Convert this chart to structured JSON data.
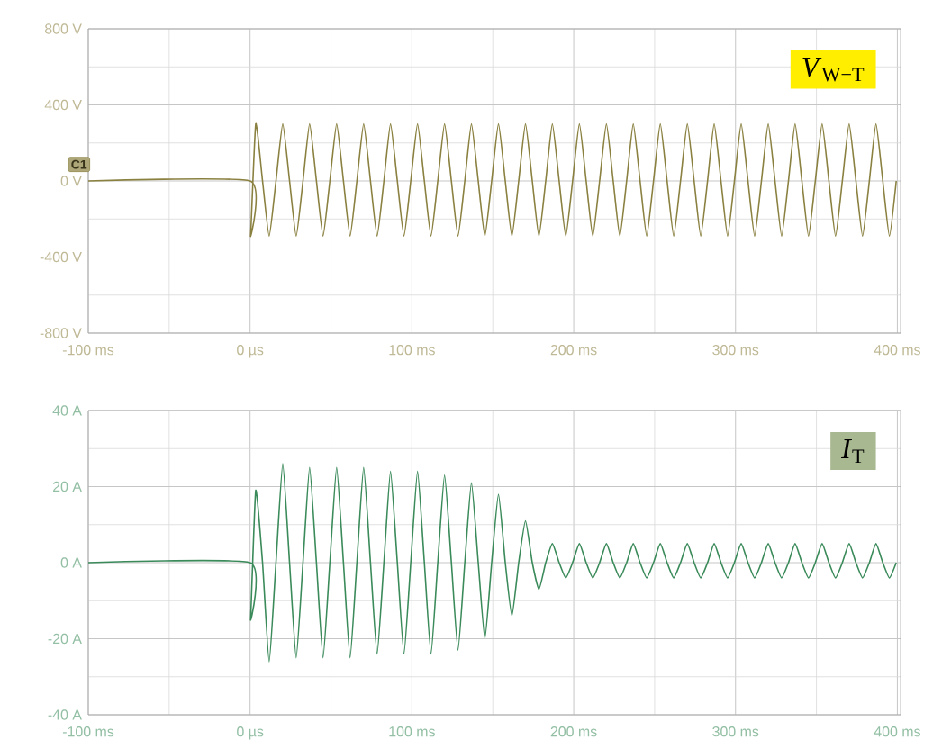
{
  "chart_data": [
    {
      "type": "line",
      "color": "#8a8040",
      "xlim": [
        -100,
        402
      ],
      "ylim": [
        -800,
        800
      ],
      "grid": true,
      "xticks": [
        {
          "value": -100,
          "label": "-100 ms"
        },
        {
          "value": 0,
          "label": "0 µs"
        },
        {
          "value": 100,
          "label": "100 ms"
        },
        {
          "value": 200,
          "label": "200 ms"
        },
        {
          "value": 300,
          "label": "300 ms"
        },
        {
          "value": 400,
          "label": "400 ms"
        }
      ],
      "yticks": [
        {
          "value": -800,
          "label": "-800 V"
        },
        {
          "value": -400,
          "label": "-400 V"
        },
        {
          "value": 0,
          "label": "0 V"
        },
        {
          "value": 400,
          "label": "400 V"
        },
        {
          "value": 800,
          "label": "800 V"
        }
      ],
      "annotations": [
        "*V*$_{W−T}$",
        "C1"
      ],
      "x": [
        -100,
        0,
        0.3,
        3.5,
        7.7,
        11.8,
        16.0,
        20.2,
        24.4,
        28.5,
        32.7,
        36.8,
        41.0,
        45.1,
        49.3,
        53.5,
        57.7,
        61.8,
        66.0,
        70.2,
        74.4,
        78.5,
        82.7,
        86.8,
        91.0,
        95.1,
        99.3,
        103.5,
        107.7,
        111.8,
        116.0,
        120.2,
        124.4,
        128.5,
        132.7,
        136.8,
        141.0,
        145.1,
        149.3,
        153.5,
        157.7,
        161.8,
        166.0,
        170.2,
        174.4,
        178.5,
        182.7,
        186.8,
        191.0,
        195.1,
        199.3,
        203.5,
        207.7,
        211.8,
        216.0,
        220.2,
        224.4,
        228.5,
        232.7,
        236.8,
        241.0,
        245.1,
        249.3,
        253.5,
        257.7,
        261.8,
        266.0,
        270.2,
        274.4,
        278.5,
        282.7,
        286.8,
        291.0,
        295.1,
        299.3,
        303.5,
        307.7,
        311.8,
        316.0,
        320.2,
        324.4,
        328.5,
        332.7,
        336.8,
        341.0,
        345.1,
        349.3,
        353.5,
        357.7,
        361.8,
        366.0,
        370.2,
        374.4,
        378.5,
        382.7,
        386.8,
        391.0,
        395.1,
        399.3
      ],
      "values": [
        0,
        0,
        -290,
        300,
        0,
        -290,
        0,
        300,
        0,
        -290,
        0,
        300,
        0,
        -290,
        0,
        300,
        0,
        -290,
        0,
        300,
        0,
        -290,
        0,
        300,
        0,
        -290,
        0,
        300,
        0,
        -290,
        0,
        300,
        0,
        -290,
        0,
        300,
        0,
        -290,
        0,
        300,
        0,
        -290,
        0,
        300,
        0,
        -290,
        0,
        300,
        0,
        -290,
        0,
        300,
        0,
        -290,
        0,
        300,
        0,
        -290,
        0,
        300,
        0,
        -290,
        0,
        300,
        0,
        -290,
        0,
        300,
        0,
        -290,
        0,
        300,
        0,
        -290,
        0,
        300,
        0,
        -290,
        0,
        300,
        0,
        -290,
        0,
        300,
        0,
        -290,
        0,
        300,
        0,
        -290,
        0,
        300,
        0,
        -290,
        0,
        300,
        0,
        -290,
        0
      ]
    },
    {
      "type": "line",
      "color": "#3a8a5a",
      "xlim": [
        -100,
        402
      ],
      "ylim": [
        -40,
        40
      ],
      "grid": true,
      "xticks": [
        {
          "value": -100,
          "label": "-100 ms"
        },
        {
          "value": 0,
          "label": "0 µs"
        },
        {
          "value": 100,
          "label": "100 ms"
        },
        {
          "value": 200,
          "label": "200 ms"
        },
        {
          "value": 300,
          "label": "300 ms"
        },
        {
          "value": 400,
          "label": "400 ms"
        }
      ],
      "yticks": [
        {
          "value": -40,
          "label": "-40 A"
        },
        {
          "value": -20,
          "label": "-20 A"
        },
        {
          "value": 0,
          "label": "0 A"
        },
        {
          "value": 20,
          "label": "20 A"
        },
        {
          "value": 40,
          "label": "40 A"
        }
      ],
      "annotations": [
        "*I*$_{T}$"
      ],
      "x": [
        -100,
        0,
        0.3,
        3.5,
        7.7,
        11.8,
        16.0,
        20.2,
        24.4,
        28.5,
        32.7,
        36.8,
        41.0,
        45.1,
        49.3,
        53.5,
        57.7,
        61.8,
        66.0,
        70.2,
        74.4,
        78.5,
        82.7,
        86.8,
        91.0,
        95.1,
        99.3,
        103.5,
        107.7,
        111.8,
        116.0,
        120.2,
        124.4,
        128.5,
        132.7,
        136.8,
        141.0,
        145.1,
        149.3,
        153.5,
        157.7,
        161.8,
        166.0,
        170.2,
        174.4,
        178.5,
        182.7,
        186.8,
        191.0,
        195.1,
        199.3,
        203.5,
        207.7,
        211.8,
        216.0,
        220.2,
        224.4,
        228.5,
        232.7,
        236.8,
        241.0,
        245.1,
        249.3,
        253.5,
        257.7,
        261.8,
        266.0,
        270.2,
        274.4,
        278.5,
        282.7,
        286.8,
        291.0,
        295.1,
        299.3,
        303.5,
        307.7,
        311.8,
        316.0,
        320.2,
        324.4,
        328.5,
        332.7,
        336.8,
        341.0,
        345.1,
        349.3,
        353.5,
        357.7,
        361.8,
        366.0,
        370.2,
        374.4,
        378.5,
        382.7,
        386.8,
        391.0,
        395.1,
        399.3
      ],
      "values": [
        0,
        0,
        -15,
        19,
        0,
        -26,
        0,
        26,
        0,
        -25,
        0,
        25,
        0,
        -25,
        0,
        25,
        0,
        -25,
        0,
        25,
        0,
        -24,
        0,
        24,
        0,
        -24,
        0,
        24,
        0,
        -24,
        0,
        23,
        0,
        -23,
        0,
        21,
        0,
        -20,
        0,
        18,
        0,
        -14,
        0,
        11,
        0,
        -7,
        0,
        5,
        0,
        -4,
        0,
        5,
        0,
        -4,
        0,
        5,
        0,
        -4,
        0,
        5,
        0,
        -4,
        0,
        5,
        0,
        -4,
        0,
        5,
        0,
        -4,
        0,
        5,
        0,
        -4,
        0,
        5,
        0,
        -4,
        0,
        5,
        0,
        -4,
        0,
        5,
        0,
        -4,
        0,
        5,
        0,
        -4,
        0,
        5,
        0,
        -4,
        0,
        5,
        0,
        -4,
        0
      ]
    }
  ]
}
